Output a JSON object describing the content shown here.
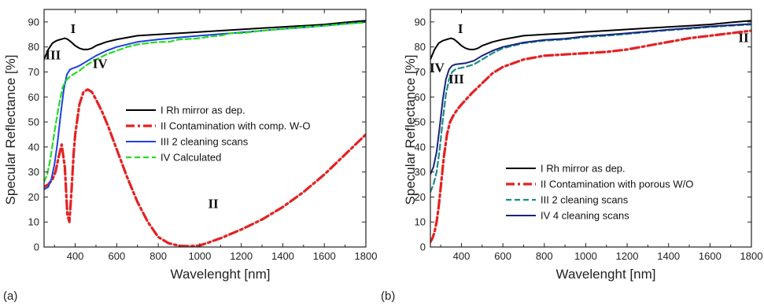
{
  "chart_data": [
    {
      "type": "line",
      "panel_label": "(a)",
      "xlabel": "Wavelenght   [nm]",
      "ylabel": "Specular Reflectance [%]",
      "xlim": [
        250,
        1800
      ],
      "ylim": [
        0,
        95
      ],
      "xticks": [
        400,
        600,
        800,
        1000,
        1200,
        1400,
        1600,
        1800
      ],
      "yticks": [
        0,
        10,
        20,
        30,
        40,
        50,
        60,
        70,
        80,
        90
      ],
      "grid": false,
      "legend_position": "center-right",
      "series": [
        {
          "name": "I Rh mirror as dep.",
          "color": "#000000",
          "style": "solid",
          "x": [
            250,
            270,
            290,
            310,
            330,
            350,
            365,
            380,
            400,
            420,
            440,
            460,
            480,
            500,
            550,
            600,
            700,
            800,
            900,
            1000,
            1100,
            1200,
            1300,
            1400,
            1500,
            1600,
            1700,
            1800
          ],
          "y": [
            75,
            79,
            81.5,
            82.5,
            83,
            83.5,
            83,
            82,
            80.5,
            79.5,
            79,
            79,
            79.5,
            80.5,
            82,
            83,
            84.5,
            85,
            85.5,
            86,
            86.5,
            87,
            87.5,
            88,
            88.5,
            89,
            89.8,
            90.5
          ]
        },
        {
          "name": "II Contamination with comp. W-O",
          "color": "#e32222",
          "style": "dashdot",
          "x": [
            250,
            270,
            290,
            305,
            320,
            335,
            350,
            362,
            372,
            382,
            392,
            400,
            420,
            440,
            460,
            480,
            500,
            530,
            560,
            600,
            650,
            700,
            750,
            800,
            850,
            900,
            950,
            1000,
            1050,
            1100,
            1200,
            1300,
            1400,
            1500,
            1600,
            1700,
            1800
          ],
          "y": [
            24,
            25,
            27,
            30,
            36,
            41,
            32,
            13,
            10,
            22,
            37,
            45,
            57,
            62,
            63,
            62,
            59,
            54,
            48,
            39,
            28,
            18,
            10,
            4,
            1.5,
            0.5,
            0.3,
            0.6,
            2,
            3.5,
            7,
            11,
            16,
            22,
            29,
            37,
            45
          ]
        },
        {
          "name": "III 2 cleaning scans",
          "color": "#1f3fe0",
          "style": "solid",
          "x": [
            250,
            270,
            285,
            300,
            315,
            330,
            345,
            360,
            375,
            390,
            400,
            420,
            450,
            500,
            550,
            600,
            700,
            800,
            900,
            1000,
            1100,
            1200,
            1300,
            1400,
            1500,
            1600,
            1700,
            1800
          ],
          "y": [
            23,
            24,
            27,
            33,
            42,
            53,
            63,
            69,
            71,
            71.5,
            71.8,
            72.5,
            74,
            76.5,
            78.5,
            80,
            82,
            83,
            83.8,
            84.5,
            85.2,
            85.8,
            86.5,
            87.2,
            87.8,
            88.5,
            89.2,
            90
          ]
        },
        {
          "name": "IV Calculated",
          "color": "#22dd22",
          "style": "dashed",
          "x": [
            250,
            265,
            280,
            300,
            320,
            340,
            360,
            380,
            400,
            420,
            450,
            500,
            550,
            600,
            650,
            700,
            750,
            800,
            850,
            900,
            950,
            1000,
            1050,
            1100,
            1150,
            1200,
            1300,
            1400,
            1500,
            1600,
            1700,
            1800
          ],
          "y": [
            26,
            29,
            35,
            46,
            56,
            64,
            67,
            68.5,
            69.5,
            70.5,
            72.5,
            75,
            77,
            78.5,
            80,
            81,
            81.5,
            82,
            82,
            83,
            83.2,
            83.5,
            84.2,
            84.5,
            85.5,
            85.5,
            86.5,
            87.2,
            88,
            88.5,
            89.2,
            89.8
          ]
        }
      ],
      "annotations": [
        {
          "text": "I",
          "x": 390,
          "y": 85.5
        },
        {
          "text": "III",
          "x": 293,
          "y": 75
        },
        {
          "text": "IV",
          "x": 520,
          "y": 71.5
        },
        {
          "text": "II",
          "x": 1065,
          "y": 15.5
        }
      ]
    },
    {
      "type": "line",
      "panel_label": "(b)",
      "xlabel": "Wavelenght   [nm]",
      "ylabel": "Specular Reflectance [%]",
      "xlim": [
        250,
        1800
      ],
      "ylim": [
        0,
        95
      ],
      "xticks": [
        400,
        600,
        800,
        1000,
        1200,
        1400,
        1600,
        1800
      ],
      "yticks": [
        0,
        10,
        20,
        30,
        40,
        50,
        60,
        70,
        80,
        90
      ],
      "grid": false,
      "legend_position": "bottom-right",
      "series": [
        {
          "name": "I Rh mirror as dep.",
          "color": "#000000",
          "style": "solid",
          "x": [
            250,
            270,
            290,
            310,
            330,
            350,
            365,
            380,
            400,
            420,
            440,
            460,
            480,
            500,
            550,
            600,
            700,
            800,
            900,
            1000,
            1100,
            1200,
            1300,
            1400,
            1500,
            1600,
            1700,
            1800
          ],
          "y": [
            75,
            79,
            81.5,
            82.5,
            83,
            83.5,
            83,
            82,
            80.5,
            79.5,
            79,
            79,
            79.5,
            80.5,
            82,
            83,
            84.5,
            85,
            85.5,
            86,
            86.5,
            87,
            87.5,
            88,
            88.5,
            89,
            89.8,
            90.5
          ]
        },
        {
          "name": "II Contamination with porous W/O",
          "color": "#e32222",
          "style": "dashdot",
          "x": [
            250,
            260,
            270,
            280,
            290,
            300,
            315,
            330,
            345,
            360,
            380,
            400,
            450,
            500,
            550,
            600,
            700,
            800,
            900,
            1000,
            1100,
            1200,
            1300,
            1400,
            1500,
            1600,
            1700,
            1800
          ],
          "y": [
            2,
            3.5,
            6,
            10,
            16,
            24,
            36,
            45,
            50,
            52.5,
            55,
            57,
            61.5,
            65.5,
            69.5,
            72,
            75,
            76.5,
            77,
            77.5,
            78,
            79,
            80.5,
            82,
            83.5,
            84.5,
            85.5,
            86.5
          ]
        },
        {
          "name": "III 2 cleaning scans",
          "color": "#1a8c8c",
          "style": "dashed",
          "x": [
            250,
            265,
            280,
            295,
            310,
            325,
            340,
            355,
            370,
            390,
            420,
            460,
            500,
            550,
            600,
            700,
            800,
            900,
            1000,
            1100,
            1200,
            1300,
            1400,
            1500,
            1600,
            1700,
            1800
          ],
          "y": [
            22,
            25,
            30,
            39,
            51,
            61,
            67,
            70,
            71,
            71.5,
            72,
            73,
            75,
            77.5,
            79.5,
            81.5,
            82.5,
            83,
            84,
            84.5,
            85.2,
            86,
            86.7,
            87.3,
            88,
            88.5,
            89
          ]
        },
        {
          "name": "IV 4 cleaning scans",
          "color": "#1a237e",
          "style": "solid",
          "x": [
            250,
            265,
            280,
            295,
            310,
            325,
            340,
            355,
            370,
            390,
            420,
            460,
            500,
            550,
            600,
            700,
            800,
            900,
            1000,
            1100,
            1200,
            1300,
            1400,
            1500,
            1600,
            1700,
            1800
          ],
          "y": [
            29,
            32,
            38,
            48,
            59,
            67,
            71,
            72.5,
            73,
            73.2,
            73.5,
            74.5,
            76.5,
            78.5,
            80,
            81.8,
            82.8,
            83.3,
            84.3,
            84.8,
            85.5,
            86.2,
            86.9,
            87.5,
            88.2,
            88.7,
            89.2
          ]
        }
      ],
      "annotations": [
        {
          "text": "I",
          "x": 395,
          "y": 85.5
        },
        {
          "text": "IV",
          "x": 282,
          "y": 70
        },
        {
          "text": "III",
          "x": 375,
          "y": 65.5
        },
        {
          "text": "II",
          "x": 1762,
          "y": 82
        }
      ]
    }
  ]
}
